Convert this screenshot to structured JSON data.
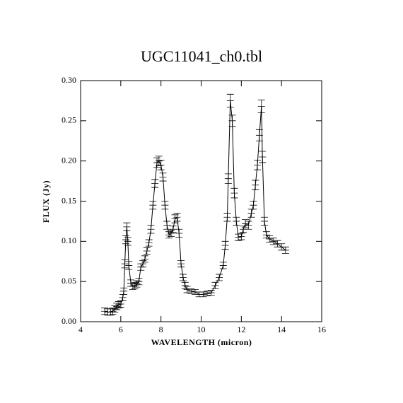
{
  "chart_data": {
    "type": "line",
    "title": "UGC11041_ch0.tbl",
    "x_label": "WAVELENGTH (micron)",
    "y_label": "FLUX (Jy)",
    "color": "#000000",
    "x": [
      5.2,
      5.35,
      5.5,
      5.6,
      5.7,
      5.8,
      5.9,
      6.0,
      6.1,
      6.15,
      6.2,
      6.25,
      6.3,
      6.35,
      6.4,
      6.5,
      6.6,
      6.7,
      6.8,
      6.9,
      7.0,
      7.1,
      7.2,
      7.3,
      7.4,
      7.5,
      7.6,
      7.7,
      7.8,
      7.9,
      8.0,
      8.1,
      8.2,
      8.3,
      8.4,
      8.5,
      8.6,
      8.7,
      8.8,
      8.9,
      9.0,
      9.1,
      9.2,
      9.3,
      9.5,
      9.7,
      9.9,
      10.1,
      10.3,
      10.5,
      10.7,
      10.9,
      11.1,
      11.2,
      11.3,
      11.35,
      11.45,
      11.55,
      11.65,
      11.75,
      11.85,
      12.0,
      12.1,
      12.2,
      12.35,
      12.5,
      12.6,
      12.7,
      12.8,
      12.9,
      13.0,
      13.05,
      13.15,
      13.25,
      13.4,
      13.6,
      13.8,
      14.0,
      14.2
    ],
    "values": [
      0.013,
      0.012,
      0.012,
      0.013,
      0.016,
      0.019,
      0.021,
      0.022,
      0.03,
      0.038,
      0.072,
      0.102,
      0.118,
      0.1,
      0.07,
      0.048,
      0.044,
      0.045,
      0.047,
      0.05,
      0.068,
      0.072,
      0.078,
      0.088,
      0.098,
      0.115,
      0.145,
      0.172,
      0.198,
      0.2,
      0.195,
      0.18,
      0.145,
      0.12,
      0.108,
      0.11,
      0.115,
      0.128,
      0.13,
      0.11,
      0.072,
      0.055,
      0.045,
      0.04,
      0.038,
      0.037,
      0.034,
      0.034,
      0.035,
      0.036,
      0.045,
      0.055,
      0.07,
      0.095,
      0.13,
      0.178,
      0.275,
      0.25,
      0.16,
      0.125,
      0.105,
      0.106,
      0.115,
      0.122,
      0.12,
      0.135,
      0.145,
      0.17,
      0.195,
      0.232,
      0.268,
      0.205,
      0.125,
      0.108,
      0.103,
      0.1,
      0.097,
      0.093,
      0.089
    ],
    "errors": [
      0.004,
      0.004,
      0.004,
      0.004,
      0.004,
      0.004,
      0.004,
      0.004,
      0.004,
      0.004,
      0.005,
      0.005,
      0.005,
      0.005,
      0.005,
      0.004,
      0.004,
      0.004,
      0.004,
      0.004,
      0.004,
      0.004,
      0.004,
      0.004,
      0.004,
      0.005,
      0.005,
      0.005,
      0.006,
      0.006,
      0.006,
      0.005,
      0.005,
      0.005,
      0.004,
      0.004,
      0.004,
      0.005,
      0.005,
      0.005,
      0.004,
      0.004,
      0.004,
      0.004,
      0.003,
      0.003,
      0.003,
      0.003,
      0.003,
      0.003,
      0.004,
      0.004,
      0.004,
      0.005,
      0.005,
      0.006,
      0.008,
      0.007,
      0.006,
      0.005,
      0.004,
      0.004,
      0.004,
      0.005,
      0.005,
      0.005,
      0.005,
      0.006,
      0.006,
      0.007,
      0.008,
      0.007,
      0.005,
      0.004,
      0.004,
      0.004,
      0.004,
      0.004,
      0.004
    ],
    "xlim": [
      4,
      16
    ],
    "ylim": [
      0,
      0.3
    ],
    "xticks": [
      4,
      6,
      8,
      10,
      12,
      14,
      16
    ],
    "yticks": [
      {
        "value": 0,
        "label": "0.00"
      },
      {
        "value": 0.05,
        "label": "0.05"
      },
      {
        "value": 0.1,
        "label": "0.10"
      },
      {
        "value": 0.15,
        "label": "0.15"
      },
      {
        "value": 0.2,
        "label": "0.20"
      },
      {
        "value": 0.25,
        "label": "0.25"
      },
      {
        "value": 0.3,
        "label": "0.30"
      }
    ]
  }
}
